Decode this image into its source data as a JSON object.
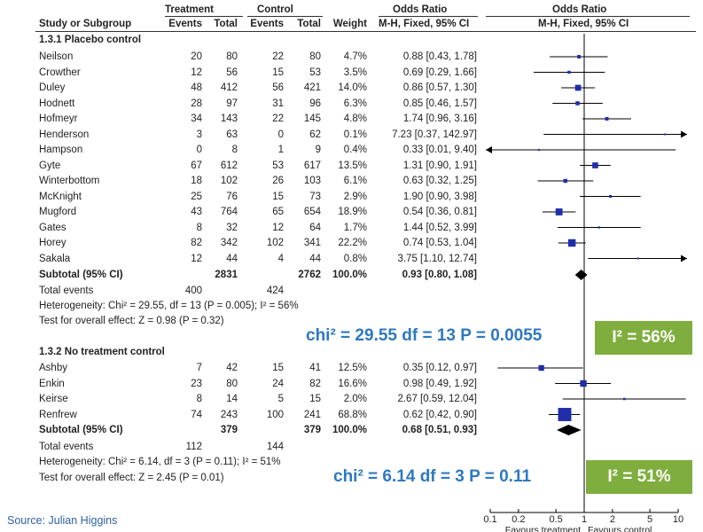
{
  "headers": {
    "study": "Study or Subgroup",
    "treatment": "Treatment",
    "control": "Control",
    "events": "Events",
    "total": "Total",
    "weight": "Weight",
    "odds_ratio": "Odds Ratio",
    "method": "M-H, Fixed, 95% CI"
  },
  "groups": [
    {
      "title": "1.3.1 Placebo control",
      "studies": [
        {
          "name": "Neilson",
          "te": "20",
          "tt": "80",
          "ce": "22",
          "ct": "80",
          "w": "4.7%",
          "ci": "0.88 [0.43, 1.78]"
        },
        {
          "name": "Crowther",
          "te": "12",
          "tt": "56",
          "ce": "15",
          "ct": "53",
          "w": "3.5%",
          "ci": "0.69 [0.29, 1.66]"
        },
        {
          "name": "Duley",
          "te": "48",
          "tt": "412",
          "ce": "56",
          "ct": "421",
          "w": "14.0%",
          "ci": "0.86 [0.57, 1.30]"
        },
        {
          "name": "Hodnett",
          "te": "28",
          "tt": "97",
          "ce": "31",
          "ct": "96",
          "w": "6.3%",
          "ci": "0.85 [0.46, 1.57]"
        },
        {
          "name": "Hofmeyr",
          "te": "34",
          "tt": "143",
          "ce": "22",
          "ct": "145",
          "w": "4.8%",
          "ci": "1.74 [0.96, 3.16]"
        },
        {
          "name": "Henderson",
          "te": "3",
          "tt": "63",
          "ce": "0",
          "ct": "62",
          "w": "0.1%",
          "ci": "7.23 [0.37, 142.97]"
        },
        {
          "name": "Hampson",
          "te": "0",
          "tt": "8",
          "ce": "1",
          "ct": "9",
          "w": "0.4%",
          "ci": "0.33 [0.01, 9.40]"
        },
        {
          "name": "Gyte",
          "te": "67",
          "tt": "612",
          "ce": "53",
          "ct": "617",
          "w": "13.5%",
          "ci": "1.31 [0.90, 1.91]"
        },
        {
          "name": "Winterbottom",
          "te": "18",
          "tt": "102",
          "ce": "26",
          "ct": "103",
          "w": "6.1%",
          "ci": "0.63 [0.32, 1.25]"
        },
        {
          "name": "McKnight",
          "te": "25",
          "tt": "76",
          "ce": "15",
          "ct": "73",
          "w": "2.9%",
          "ci": "1.90 [0.90, 3.98]"
        },
        {
          "name": "Mugford",
          "te": "43",
          "tt": "764",
          "ce": "65",
          "ct": "654",
          "w": "18.9%",
          "ci": "0.54 [0.36, 0.81]"
        },
        {
          "name": "Gates",
          "te": "8",
          "tt": "32",
          "ce": "12",
          "ct": "64",
          "w": "1.7%",
          "ci": "1.44 [0.52, 3.99]"
        },
        {
          "name": "Horey",
          "te": "82",
          "tt": "342",
          "ce": "102",
          "ct": "341",
          "w": "22.2%",
          "ci": "0.74 [0.53, 1.04]"
        },
        {
          "name": "Sakala",
          "te": "12",
          "tt": "44",
          "ce": "4",
          "ct": "44",
          "w": "0.8%",
          "ci": "3.75 [1.10, 12.74]"
        }
      ],
      "subtotal": {
        "label": "Subtotal (95% CI)",
        "tt": "2831",
        "ct": "2762",
        "w": "100.0%",
        "ci": "0.93 [0.80, 1.08]"
      },
      "total_events": {
        "label": "Total events",
        "te": "400",
        "ce": "424"
      },
      "heterogeneity": "Heterogeneity: Chi² = 29.55, df = 13 (P = 0.005); I² = 56%",
      "overall": "Test for overall effect: Z = 0.98 (P = 0.32)",
      "callout_chi": "chi² = 29.55  df = 13  P = 0.0055",
      "callout_i2": "I² = 56%"
    },
    {
      "title": "1.3.2 No treatment control",
      "studies": [
        {
          "name": "Ashby",
          "te": "7",
          "tt": "42",
          "ce": "15",
          "ct": "41",
          "w": "12.5%",
          "ci": "0.35 [0.12, 0.97]"
        },
        {
          "name": "Enkin",
          "te": "23",
          "tt": "80",
          "ce": "24",
          "ct": "82",
          "w": "16.6%",
          "ci": "0.98 [0.49, 1.92]"
        },
        {
          "name": "Keirse",
          "te": "8",
          "tt": "14",
          "ce": "5",
          "ct": "15",
          "w": "2.0%",
          "ci": "2.67 [0.59, 12.04]"
        },
        {
          "name": "Renfrew",
          "te": "74",
          "tt": "243",
          "ce": "100",
          "ct": "241",
          "w": "68.8%",
          "ci": "0.62 [0.42, 0.90]"
        }
      ],
      "subtotal": {
        "label": "Subtotal (95% CI)",
        "tt": "379",
        "ct": "379",
        "w": "100.0%",
        "ci": "0.68 [0.51, 0.93]"
      },
      "total_events": {
        "label": "Total events",
        "te": "112",
        "ce": "144"
      },
      "heterogeneity": "Heterogeneity: Chi² = 6.14, df = 3 (P = 0.11); I² = 51%",
      "overall": "Test for overall effect: Z = 2.45 (P = 0.01)",
      "callout_chi": "chi² = 6.14  df = 3  P = 0.11",
      "callout_i2": "I² = 51%"
    }
  ],
  "source": "Source: Julian Higgins",
  "axis": {
    "ticks": [
      "0.1",
      "0.2",
      "0.5",
      "1",
      "2",
      "5",
      "10"
    ],
    "left_label": "Favours treatment",
    "right_label": "Favours control"
  },
  "colors": {
    "marker": "#1f2ea8",
    "diamond": "#000000",
    "callout": "#2e79c0",
    "i2_box": "#7fae3e"
  },
  "chart_data": {
    "type": "forest",
    "title": "Odds Ratio (M-H, Fixed, 95% CI)",
    "xscale": "log",
    "xlim": [
      0.1,
      10
    ],
    "xticks": [
      0.1,
      0.2,
      0.5,
      1,
      2,
      5,
      10
    ],
    "xlabel_left": "Favours treatment",
    "xlabel_right": "Favours control",
    "subgroups": [
      {
        "name": "1.3.1 Placebo control",
        "studies": [
          {
            "name": "Neilson",
            "or": 0.88,
            "lo": 0.43,
            "hi": 1.78,
            "weight": 4.7
          },
          {
            "name": "Crowther",
            "or": 0.69,
            "lo": 0.29,
            "hi": 1.66,
            "weight": 3.5
          },
          {
            "name": "Duley",
            "or": 0.86,
            "lo": 0.57,
            "hi": 1.3,
            "weight": 14.0
          },
          {
            "name": "Hodnett",
            "or": 0.85,
            "lo": 0.46,
            "hi": 1.57,
            "weight": 6.3
          },
          {
            "name": "Hofmeyr",
            "or": 1.74,
            "lo": 0.96,
            "hi": 3.16,
            "weight": 4.8
          },
          {
            "name": "Henderson",
            "or": 7.23,
            "lo": 0.37,
            "hi": 142.97,
            "weight": 0.1
          },
          {
            "name": "Hampson",
            "or": 0.33,
            "lo": 0.01,
            "hi": 9.4,
            "weight": 0.4
          },
          {
            "name": "Gyte",
            "or": 1.31,
            "lo": 0.9,
            "hi": 1.91,
            "weight": 13.5
          },
          {
            "name": "Winterbottom",
            "or": 0.63,
            "lo": 0.32,
            "hi": 1.25,
            "weight": 6.1
          },
          {
            "name": "McKnight",
            "or": 1.9,
            "lo": 0.9,
            "hi": 3.98,
            "weight": 2.9
          },
          {
            "name": "Mugford",
            "or": 0.54,
            "lo": 0.36,
            "hi": 0.81,
            "weight": 18.9
          },
          {
            "name": "Gates",
            "or": 1.44,
            "lo": 0.52,
            "hi": 3.99,
            "weight": 1.7
          },
          {
            "name": "Horey",
            "or": 0.74,
            "lo": 0.53,
            "hi": 1.04,
            "weight": 22.2
          },
          {
            "name": "Sakala",
            "or": 3.75,
            "lo": 1.1,
            "hi": 12.74,
            "weight": 0.8
          }
        ],
        "subtotal": {
          "or": 0.93,
          "lo": 0.8,
          "hi": 1.08
        }
      },
      {
        "name": "1.3.2 No treatment control",
        "studies": [
          {
            "name": "Ashby",
            "or": 0.35,
            "lo": 0.12,
            "hi": 0.97,
            "weight": 12.5
          },
          {
            "name": "Enkin",
            "or": 0.98,
            "lo": 0.49,
            "hi": 1.92,
            "weight": 16.6
          },
          {
            "name": "Keirse",
            "or": 2.67,
            "lo": 0.59,
            "hi": 12.04,
            "weight": 2.0
          },
          {
            "name": "Renfrew",
            "or": 0.62,
            "lo": 0.42,
            "hi": 0.9,
            "weight": 68.8
          }
        ],
        "subtotal": {
          "or": 0.68,
          "lo": 0.51,
          "hi": 0.93
        }
      }
    ]
  }
}
